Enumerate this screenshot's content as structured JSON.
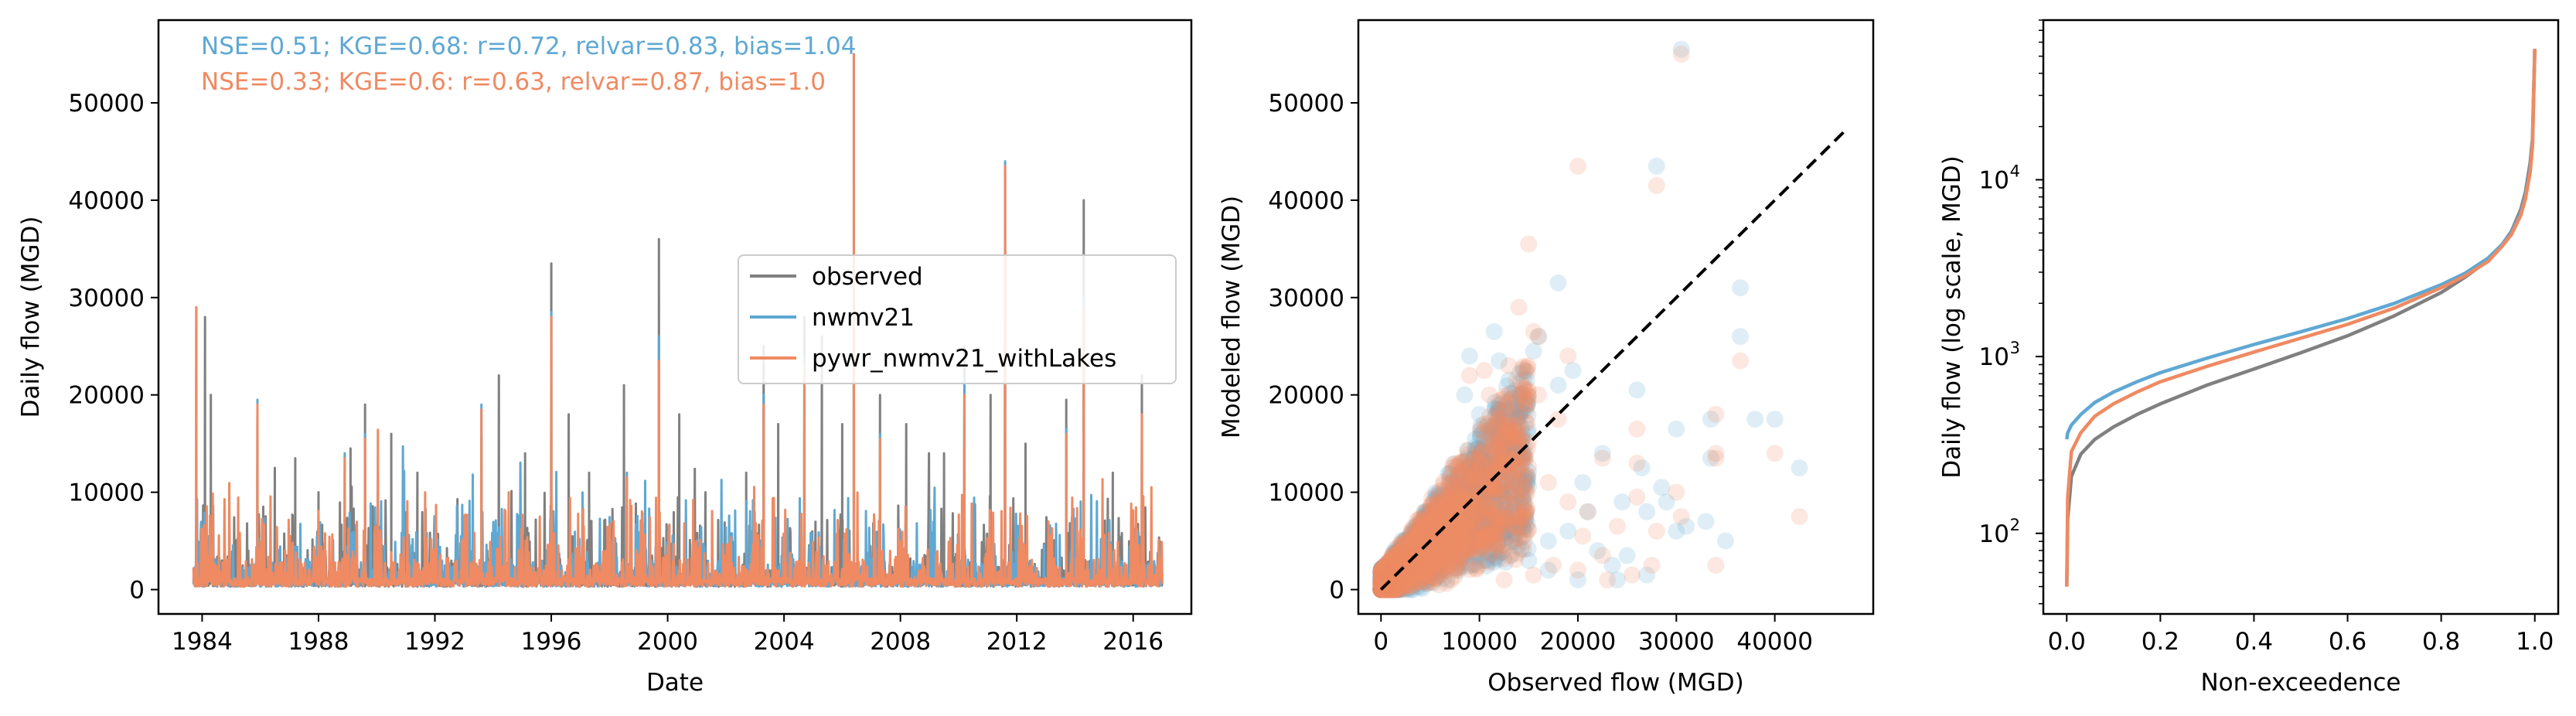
{
  "colors": {
    "observed": "#808080",
    "nwmv21": "#5fa8d3",
    "pywr": "#ef8a62",
    "identity_line": "#000000"
  },
  "chart_data": [
    {
      "type": "line",
      "xlabel": "Date",
      "ylabel": "Daily flow (MGD)",
      "xlim": [
        1982.5,
        2018.0
      ],
      "ylim": [
        -2500,
        58500
      ],
      "x_ticks": [
        "1984",
        "1988",
        "1992",
        "1996",
        "2000",
        "2004",
        "2008",
        "2012",
        "2016"
      ],
      "y_ticks": [
        "0",
        "10000",
        "20000",
        "30000",
        "40000",
        "50000"
      ],
      "metrics": [
        {
          "text": "NSE=0.51; KGE=0.68: r=0.72, relvar=0.83, bias=1.04",
          "color_key": "nwmv21"
        },
        {
          "text": "NSE=0.33; KGE=0.6: r=0.63, relvar=0.87, bias=1.0",
          "color_key": "pywr"
        }
      ],
      "legend": {
        "placement": "center-right",
        "entries": [
          "observed",
          "nwmv21",
          "pywr_nwmv21_withLakes"
        ]
      },
      "series": [
        {
          "name": "observed",
          "color_key": "observed",
          "peaks": [
            [
              1983.8,
              27000
            ],
            [
              1984.1,
              28000
            ],
            [
              1984.3,
              20000
            ],
            [
              1985.9,
              18500
            ],
            [
              1986.5,
              12500
            ],
            [
              1987.2,
              13500
            ],
            [
              1988.0,
              10000
            ],
            [
              1989.1,
              14500
            ],
            [
              1989.6,
              19000
            ],
            [
              1990.5,
              16000
            ],
            [
              1991.4,
              12000
            ],
            [
              1993.6,
              15500
            ],
            [
              1994.2,
              22000
            ],
            [
              1995.1,
              14000
            ],
            [
              1996.0,
              33500
            ],
            [
              1996.6,
              18000
            ],
            [
              1997.3,
              12000
            ],
            [
              1998.5,
              21000
            ],
            [
              1999.7,
              36000
            ],
            [
              2000.4,
              18000
            ],
            [
              2001.3,
              10000
            ],
            [
              2002.7,
              12000
            ],
            [
              2003.3,
              25000
            ],
            [
              2003.8,
              17000
            ],
            [
              2004.7,
              28000
            ],
            [
              2005.3,
              26000
            ],
            [
              2006.0,
              17000
            ],
            [
              2006.4,
              28000
            ],
            [
              2007.3,
              20000
            ],
            [
              2008.2,
              17000
            ],
            [
              2009.5,
              14000
            ],
            [
              2010.2,
              25000
            ],
            [
              2011.1,
              20000
            ],
            [
              2011.6,
              43000
            ],
            [
              2012.3,
              15000
            ],
            [
              2013.7,
              19500
            ],
            [
              2014.3,
              40000
            ],
            [
              2015.3,
              12000
            ],
            [
              2016.3,
              22000
            ]
          ]
        },
        {
          "name": "nwmv21",
          "color_key": "nwmv21",
          "peaks": [
            [
              1983.8,
              29000
            ],
            [
              1985.9,
              19500
            ],
            [
              1988.9,
              14000
            ],
            [
              1989.6,
              16000
            ],
            [
              1993.6,
              19000
            ],
            [
              1996.0,
              28500
            ],
            [
              1998.6,
              12000
            ],
            [
              1999.7,
              26000
            ],
            [
              2003.3,
              20000
            ],
            [
              2004.7,
              24000
            ],
            [
              2006.4,
              55000
            ],
            [
              2007.3,
              16000
            ],
            [
              2010.2,
              22000
            ],
            [
              2011.6,
              44000
            ],
            [
              2013.7,
              16500
            ],
            [
              2014.3,
              30000
            ]
          ]
        },
        {
          "name": "pywr_nwmv21_withLakes",
          "color_key": "pywr",
          "peaks": [
            [
              1983.8,
              29000
            ],
            [
              1985.9,
              19000
            ],
            [
              1988.9,
              13500
            ],
            [
              1989.6,
              15500
            ],
            [
              1993.6,
              18500
            ],
            [
              1996.0,
              28000
            ],
            [
              1998.6,
              11500
            ],
            [
              1999.7,
              23500
            ],
            [
              2003.3,
              19000
            ],
            [
              2004.7,
              23000
            ],
            [
              2006.4,
              55000
            ],
            [
              2007.3,
              15500
            ],
            [
              2010.2,
              20000
            ],
            [
              2011.6,
              43500
            ],
            [
              2013.7,
              16000
            ],
            [
              2014.3,
              29000
            ],
            [
              2016.3,
              18000
            ]
          ]
        }
      ]
    },
    {
      "type": "scatter",
      "xlabel": "Observed flow (MGD)",
      "ylabel": "Modeled flow (MGD)",
      "xlim": [
        -2300,
        50000
      ],
      "ylim": [
        -2500,
        58500
      ],
      "x_ticks": [
        "0",
        "10000",
        "20000",
        "30000",
        "40000"
      ],
      "y_ticks": [
        "0",
        "10000",
        "20000",
        "30000",
        "40000",
        "50000"
      ],
      "identity_line": [
        [
          0,
          0
        ],
        [
          47000,
          47000
        ]
      ],
      "series": [
        {
          "name": "nwmv21",
          "color_key": "nwmv21",
          "points": [
            [
              30500,
              55500
            ],
            [
              28000,
              43500
            ],
            [
              42500,
              12500
            ],
            [
              38000,
              17500
            ],
            [
              40000,
              17500
            ],
            [
              36500,
              26000
            ],
            [
              36500,
              31000
            ],
            [
              33500,
              17500
            ],
            [
              33500,
              13500
            ],
            [
              30000,
              16500
            ],
            [
              28500,
              10500
            ],
            [
              26500,
              12500
            ],
            [
              26000,
              20500
            ],
            [
              24500,
              9000
            ],
            [
              22500,
              14000
            ],
            [
              20500,
              11000
            ],
            [
              19500,
              22500
            ],
            [
              18000,
              21000
            ],
            [
              18000,
              31500
            ],
            [
              22000,
              4000
            ],
            [
              25000,
              3500
            ],
            [
              23500,
              2500
            ],
            [
              30000,
              6000
            ],
            [
              35000,
              5000
            ],
            [
              17000,
              5000
            ],
            [
              16000,
              26000
            ],
            [
              15500,
              24500
            ],
            [
              14000,
              20000
            ],
            [
              13000,
              21500
            ],
            [
              12000,
              23500
            ],
            [
              11500,
              26500
            ],
            [
              21000,
              8000
            ],
            [
              19000,
              6000
            ],
            [
              27000,
              8000
            ],
            [
              29000,
              9000
            ],
            [
              31000,
              6500
            ],
            [
              33000,
              7000
            ],
            [
              27000,
              1500
            ],
            [
              24000,
              1000
            ],
            [
              20000,
              1000
            ],
            [
              17000,
              2000
            ],
            [
              15000,
              3000
            ],
            [
              12000,
              15000
            ],
            [
              10000,
              18000
            ],
            [
              8500,
              20000
            ],
            [
              9000,
              24000
            ]
          ]
        },
        {
          "name": "pywr_nwmv21_withLakes",
          "color_key": "pywr",
          "points": [
            [
              30500,
              55000
            ],
            [
              20000,
              43500
            ],
            [
              28000,
              41500
            ],
            [
              34000,
              18000
            ],
            [
              34000,
              14000
            ],
            [
              34000,
              13500
            ],
            [
              40000,
              14000
            ],
            [
              42500,
              7500
            ],
            [
              36500,
              23500
            ],
            [
              26000,
              16500
            ],
            [
              30000,
              10000
            ],
            [
              26000,
              13000
            ],
            [
              26000,
              9500
            ],
            [
              22500,
              13500
            ],
            [
              15000,
              35500
            ],
            [
              15500,
              26500
            ],
            [
              14000,
              29000
            ],
            [
              16000,
              26000
            ],
            [
              13000,
              23000
            ],
            [
              10500,
              22500
            ],
            [
              19000,
              24000
            ],
            [
              34000,
              2500
            ],
            [
              27500,
              2500
            ],
            [
              25500,
              1500
            ],
            [
              22500,
              3500
            ],
            [
              20000,
              2000
            ],
            [
              17500,
              2500
            ],
            [
              19000,
              9000
            ],
            [
              21000,
              8000
            ],
            [
              24000,
              6500
            ],
            [
              12000,
              18500
            ],
            [
              16000,
              20000
            ],
            [
              18000,
              17500
            ],
            [
              14000,
              16000
            ],
            [
              11000,
              20000
            ],
            [
              9000,
              22000
            ],
            [
              13000,
              14000
            ],
            [
              17000,
              11000
            ],
            [
              20500,
              5500
            ],
            [
              23000,
              1000
            ],
            [
              15500,
              1500
            ],
            [
              12500,
              1000
            ],
            [
              28000,
              6000
            ],
            [
              30500,
              7500
            ]
          ]
        }
      ]
    },
    {
      "type": "line",
      "xlabel": "Non-exceedence",
      "ylabel": "Daily flow (log scale, MGD)",
      "xlim": [
        -0.05,
        1.05
      ],
      "ylim_log": [
        35,
        80000
      ],
      "x_ticks": [
        "0.0",
        "0.2",
        "0.4",
        "0.6",
        "0.8",
        "1.0"
      ],
      "y_ticks": [
        {
          "base": "10",
          "exp": "2"
        },
        {
          "base": "10",
          "exp": "3"
        },
        {
          "base": "10",
          "exp": "4"
        }
      ],
      "x": [
        0.0,
        0.002,
        0.01,
        0.03,
        0.06,
        0.1,
        0.15,
        0.2,
        0.3,
        0.4,
        0.5,
        0.6,
        0.7,
        0.8,
        0.85,
        0.9,
        0.93,
        0.95,
        0.97,
        0.98,
        0.99,
        0.995,
        1.0
      ],
      "series": [
        {
          "name": "observed",
          "color_key": "observed",
          "values": [
            50,
            120,
            210,
            280,
            340,
            400,
            470,
            540,
            690,
            850,
            1050,
            1310,
            1700,
            2300,
            2800,
            3500,
            4300,
            5100,
            6800,
            8500,
            12500,
            17000,
            55000
          ]
        },
        {
          "name": "nwmv21",
          "color_key": "nwmv21",
          "values": [
            340,
            370,
            410,
            470,
            550,
            630,
            720,
            810,
            980,
            1170,
            1380,
            1640,
            2000,
            2550,
            2950,
            3600,
            4300,
            5000,
            6500,
            8000,
            11500,
            16000,
            55000
          ]
        },
        {
          "name": "pywr_nwmv21_withLakes",
          "color_key": "pywr",
          "values": [
            50,
            160,
            290,
            370,
            460,
            540,
            630,
            720,
            880,
            1060,
            1270,
            1520,
            1880,
            2450,
            2850,
            3450,
            4200,
            4900,
            6300,
            7800,
            11000,
            15500,
            55000
          ]
        }
      ]
    }
  ]
}
